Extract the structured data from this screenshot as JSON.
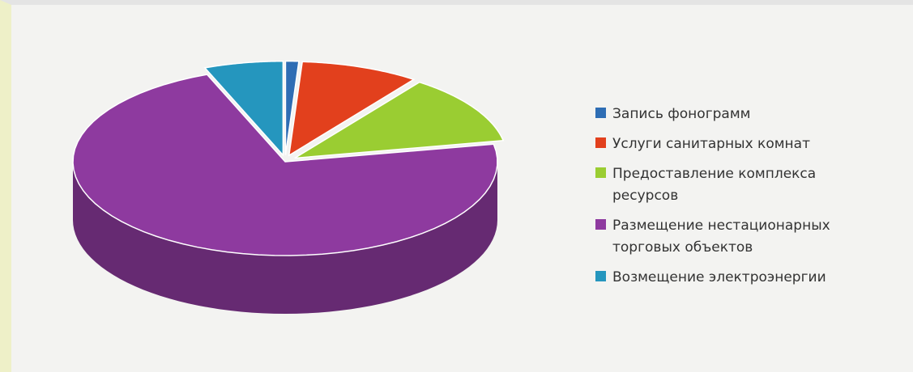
{
  "chart_data": {
    "type": "pie3d",
    "categories": [
      "Запись фонограмм",
      "Услуги санитарных комнат",
      "Предоставление комплекса ресурсов",
      "Размещение нестационарных торговых объектов",
      "Возмещение электроэнергии"
    ],
    "values": [
      1,
      9,
      12,
      72,
      6
    ],
    "colors": [
      "#2e6db4",
      "#e2401d",
      "#9acd32",
      "#8e3a9f",
      "#2596be"
    ],
    "legend": "right"
  }
}
